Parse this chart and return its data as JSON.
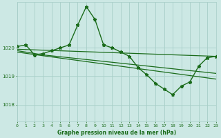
{
  "title": "Graphe pression niveau de la mer (hPa)",
  "bg_color": "#cce8e4",
  "grid_color": "#a8cec8",
  "line_color": "#1a6b1a",
  "xlim": [
    0,
    23
  ],
  "ylim": [
    1017.4,
    1021.6
  ],
  "yticks": [
    1018,
    1019,
    1020
  ],
  "xticks": [
    0,
    1,
    2,
    3,
    4,
    5,
    6,
    7,
    8,
    9,
    10,
    11,
    12,
    13,
    14,
    15,
    16,
    17,
    18,
    19,
    20,
    21,
    22,
    23
  ],
  "series": [
    {
      "x": [
        0,
        1,
        2,
        3,
        4,
        5,
        6,
        7,
        8,
        9,
        10,
        11,
        12,
        13,
        14,
        15,
        16,
        17,
        18,
        19,
        20,
        21,
        22,
        23
      ],
      "y": [
        1020.05,
        1020.1,
        1019.75,
        1019.8,
        1019.9,
        1020.0,
        1020.1,
        1020.8,
        1021.45,
        1021.0,
        1020.1,
        1020.0,
        1019.85,
        1019.7,
        1019.3,
        1019.05,
        1018.75,
        1018.55,
        1018.35,
        1018.65,
        1018.8,
        1019.35,
        1019.65,
        1019.7
      ],
      "marker": true,
      "linewidth": 1.0
    },
    {
      "x": [
        0,
        23
      ],
      "y": [
        1019.95,
        1019.7
      ],
      "marker": false,
      "linewidth": 0.9
    },
    {
      "x": [
        0,
        3,
        23
      ],
      "y": [
        1019.9,
        1019.75,
        1019.1
      ],
      "marker": false,
      "linewidth": 0.9
    },
    {
      "x": [
        0,
        3,
        23
      ],
      "y": [
        1019.85,
        1019.72,
        1018.9
      ],
      "marker": false,
      "linewidth": 0.9
    }
  ]
}
